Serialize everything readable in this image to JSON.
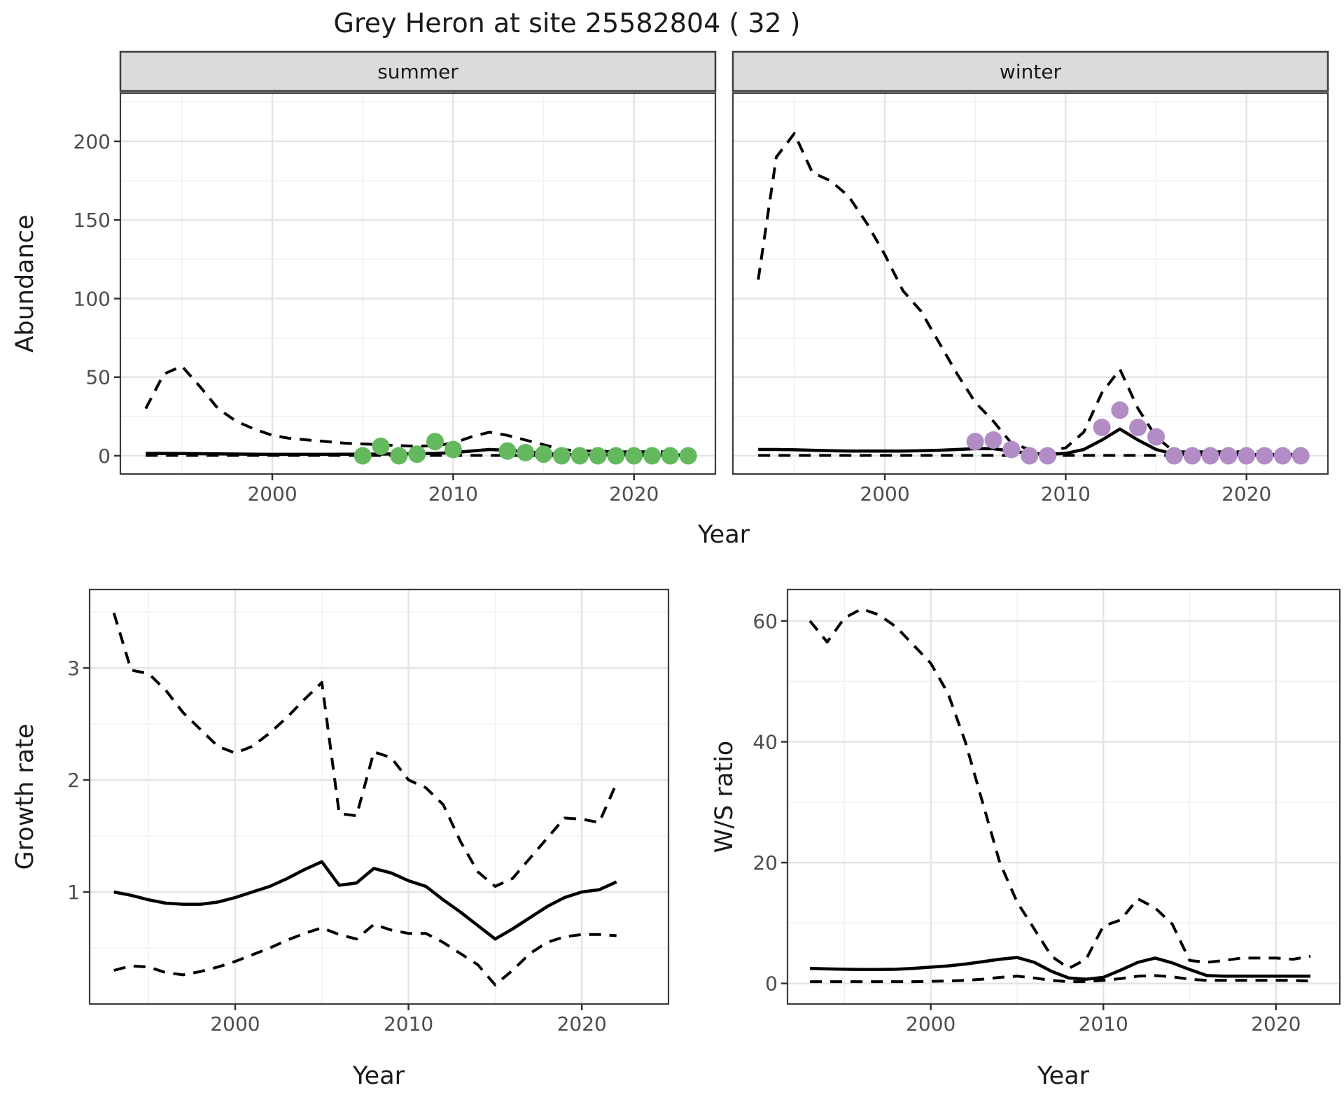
{
  "title": "Grey Heron at site 25582804 ( 32 )",
  "colors": {
    "summer_point": "#64B95F",
    "winter_point": "#B28CC4",
    "line": "#000000",
    "strip_bg": "#DBDBDB",
    "panel_border": "#3c3c3c",
    "grid_major": "#E4E4E4",
    "grid_minor": "#F2F2F2",
    "tick_text": "#4d4d4d"
  },
  "chart_data": [
    {
      "id": "abundance-summer",
      "type": "line",
      "facet_label": "summer",
      "xlabel": "Year",
      "ylabel": "Abundance",
      "xlim": [
        1991.6,
        2024.5
      ],
      "ylim": [
        -11.6,
        230.7
      ],
      "x_ticks": [
        2000,
        2010,
        2020
      ],
      "x_minor": [
        1995,
        2005,
        2015
      ],
      "y_ticks": [
        0,
        50,
        100,
        150,
        200
      ],
      "y_minor": [
        25,
        75,
        125,
        175,
        225
      ],
      "x": [
        1993,
        1994,
        1995,
        1996,
        1997,
        1998,
        1999,
        2000,
        2001,
        2002,
        2003,
        2004,
        2005,
        2006,
        2007,
        2008,
        2009,
        2010,
        2011,
        2012,
        2013,
        2014,
        2015,
        2016,
        2017,
        2018,
        2019,
        2020,
        2021,
        2022,
        2023
      ],
      "series": [
        {
          "name": "upper-ci",
          "style": "dashed",
          "values": [
            30,
            52,
            57,
            44,
            30,
            22,
            17,
            13,
            11,
            10,
            9,
            8,
            7.5,
            7,
            6.5,
            6,
            6.5,
            8,
            12,
            15,
            13,
            10,
            7,
            4,
            3,
            3,
            2.5,
            2.5,
            2.5,
            2.5,
            2.5
          ]
        },
        {
          "name": "fit",
          "style": "solid",
          "values": [
            1.5,
            1.5,
            1.4,
            1.3,
            1.2,
            1.1,
            1.0,
            0.9,
            0.9,
            0.9,
            0.9,
            1.0,
            1.0,
            1.1,
            1.2,
            1.3,
            1.5,
            2.0,
            3.0,
            4.0,
            3.5,
            2.5,
            1.5,
            0.8,
            0.6,
            0.5,
            0.5,
            0.5,
            0.5,
            0.5,
            0.5
          ]
        },
        {
          "name": "lower-ci",
          "style": "dashed",
          "values": [
            0.2,
            0.2,
            0.2,
            0.2,
            0.2,
            0.2,
            0.2,
            0.2,
            0.2,
            0.2,
            0.2,
            0.2,
            0.2,
            0.2,
            0.2,
            0.2,
            0.2,
            0.2,
            0.2,
            0.2,
            0.2,
            0.2,
            0.2,
            0.2,
            0.2,
            0.2,
            0.2,
            0.2,
            0.2,
            0.2,
            0.2
          ]
        }
      ],
      "points": {
        "name": "observed-summer",
        "color": "#64B95F",
        "data": [
          [
            2005,
            0
          ],
          [
            2006,
            6
          ],
          [
            2007,
            0
          ],
          [
            2008,
            1
          ],
          [
            2009,
            9
          ],
          [
            2010,
            4
          ],
          [
            2013,
            3
          ],
          [
            2014,
            2
          ],
          [
            2015,
            1
          ],
          [
            2016,
            0
          ],
          [
            2017,
            0
          ],
          [
            2018,
            0
          ],
          [
            2019,
            0
          ],
          [
            2020,
            0
          ],
          [
            2021,
            0
          ],
          [
            2022,
            0
          ],
          [
            2023,
            0
          ]
        ]
      }
    },
    {
      "id": "abundance-winter",
      "type": "line",
      "facet_label": "winter",
      "xlabel": "Year",
      "ylabel": "Abundance",
      "xlim": [
        1991.6,
        2024.5
      ],
      "ylim": [
        -11.6,
        230.7
      ],
      "x_ticks": [
        2000,
        2010,
        2020
      ],
      "x_minor": [
        1995,
        2005,
        2015
      ],
      "y_ticks": [
        0,
        50,
        100,
        150,
        200
      ],
      "y_minor": [
        25,
        75,
        125,
        175,
        225
      ],
      "x": [
        1993,
        1994,
        1995,
        1996,
        1997,
        1998,
        1999,
        2000,
        2001,
        2002,
        2003,
        2004,
        2005,
        2006,
        2007,
        2008,
        2009,
        2010,
        2011,
        2012,
        2013,
        2014,
        2015,
        2016,
        2017,
        2018,
        2019,
        2020,
        2021,
        2022,
        2023
      ],
      "series": [
        {
          "name": "upper-ci",
          "style": "dashed",
          "values": [
            112,
            190,
            205,
            180,
            175,
            165,
            148,
            128,
            105,
            92,
            72,
            52,
            34,
            22,
            8,
            4,
            3,
            5,
            15,
            40,
            55,
            30,
            12,
            2.5,
            2.5,
            2.5,
            2.5,
            2.5,
            2.5,
            2.5,
            3.5
          ]
        },
        {
          "name": "fit",
          "style": "solid",
          "values": [
            4,
            4,
            3.8,
            3.5,
            3.2,
            3,
            3,
            3,
            3,
            3.2,
            3.5,
            4,
            4.5,
            4.5,
            3,
            1.5,
            1,
            1.5,
            4,
            10,
            17,
            10,
            4,
            1,
            0.8,
            0.8,
            0.8,
            0.8,
            0.8,
            0.8,
            0.8
          ]
        },
        {
          "name": "lower-ci",
          "style": "dashed",
          "values": [
            0.2,
            0.2,
            0.2,
            0.2,
            0.2,
            0.2,
            0.2,
            0.2,
            0.2,
            0.2,
            0.2,
            0.2,
            0.2,
            0.2,
            0.2,
            0.2,
            0.2,
            0.2,
            0.2,
            0.2,
            0.2,
            0.2,
            0.2,
            0.2,
            0.2,
            0.2,
            0.2,
            0.2,
            0.2,
            0.2,
            0.2
          ]
        }
      ],
      "points": {
        "name": "observed-winter",
        "color": "#B28CC4",
        "data": [
          [
            2005,
            9
          ],
          [
            2006,
            10
          ],
          [
            2007,
            4
          ],
          [
            2008,
            0
          ],
          [
            2009,
            0
          ],
          [
            2012,
            18
          ],
          [
            2013,
            29
          ],
          [
            2014,
            18
          ],
          [
            2015,
            12
          ],
          [
            2016,
            0
          ],
          [
            2017,
            0
          ],
          [
            2018,
            0
          ],
          [
            2019,
            0
          ],
          [
            2020,
            0
          ],
          [
            2021,
            0
          ],
          [
            2022,
            0
          ],
          [
            2023,
            0
          ]
        ]
      }
    },
    {
      "id": "growth-rate",
      "type": "line",
      "facet_label": null,
      "xlabel": "Year",
      "ylabel": "Growth rate",
      "xlim": [
        1991.6,
        2025.0
      ],
      "ylim": [
        0,
        3.7
      ],
      "x_ticks": [
        2000,
        2010,
        2020
      ],
      "x_minor": [
        1995,
        2005,
        2015
      ],
      "y_ticks": [
        1,
        2,
        3
      ],
      "y_minor": [
        0.5,
        1.5,
        2.5,
        3.5
      ],
      "x": [
        1993,
        1994,
        1995,
        1996,
        1997,
        1998,
        1999,
        2000,
        2001,
        2002,
        2003,
        2004,
        2005,
        2006,
        2007,
        2008,
        2009,
        2010,
        2011,
        2012,
        2013,
        2014,
        2015,
        2016,
        2017,
        2018,
        2019,
        2020,
        2021,
        2022
      ],
      "series": [
        {
          "name": "upper-ci",
          "style": "dashed",
          "values": [
            3.49,
            2.98,
            2.95,
            2.8,
            2.6,
            2.45,
            2.3,
            2.24,
            2.3,
            2.42,
            2.56,
            2.72,
            2.87,
            1.7,
            1.68,
            2.25,
            2.2,
            2.0,
            1.93,
            1.78,
            1.45,
            1.18,
            1.05,
            1.12,
            1.3,
            1.48,
            1.66,
            1.65,
            1.62,
            1.97
          ]
        },
        {
          "name": "fit",
          "style": "solid",
          "values": [
            1.0,
            0.97,
            0.93,
            0.9,
            0.89,
            0.89,
            0.91,
            0.95,
            1.0,
            1.05,
            1.12,
            1.2,
            1.27,
            1.06,
            1.08,
            1.21,
            1.17,
            1.1,
            1.05,
            0.93,
            0.82,
            0.7,
            0.58,
            0.67,
            0.77,
            0.87,
            0.95,
            1.0,
            1.02,
            1.09
          ]
        },
        {
          "name": "lower-ci",
          "style": "dashed",
          "values": [
            0.3,
            0.34,
            0.33,
            0.28,
            0.26,
            0.29,
            0.33,
            0.38,
            0.44,
            0.5,
            0.57,
            0.63,
            0.68,
            0.62,
            0.58,
            0.71,
            0.66,
            0.63,
            0.63,
            0.55,
            0.45,
            0.35,
            0.17,
            0.3,
            0.45,
            0.55,
            0.6,
            0.62,
            0.62,
            0.61
          ]
        }
      ],
      "points": null
    },
    {
      "id": "ws-ratio",
      "type": "line",
      "facet_label": null,
      "xlabel": "Year",
      "ylabel": "W/S ratio",
      "xlim": [
        1991.7,
        2023.7
      ],
      "ylim": [
        -3.4,
        65.2
      ],
      "x_ticks": [
        2000,
        2010,
        2020
      ],
      "x_minor": [
        1995,
        2005,
        2015
      ],
      "y_ticks": [
        0,
        20,
        40,
        60
      ],
      "y_minor": [
        10,
        30,
        50
      ],
      "x": [
        1993,
        1994,
        1995,
        1996,
        1997,
        1998,
        1999,
        2000,
        2001,
        2002,
        2003,
        2004,
        2005,
        2006,
        2007,
        2008,
        2009,
        2010,
        2011,
        2012,
        2013,
        2014,
        2015,
        2016,
        2017,
        2018,
        2019,
        2020,
        2021,
        2022
      ],
      "series": [
        {
          "name": "upper-ci",
          "style": "dashed",
          "values": [
            60,
            56.5,
            60.5,
            62,
            61,
            59,
            56,
            53,
            48,
            40,
            30,
            20,
            13.5,
            9,
            4.5,
            2.5,
            4,
            9.5,
            10.5,
            14,
            12.5,
            9.8,
            3.8,
            3.5,
            3.8,
            4.2,
            4.2,
            4.2,
            4,
            4.5
          ]
        },
        {
          "name": "fit",
          "style": "solid",
          "values": [
            2.5,
            2.4,
            2.35,
            2.3,
            2.3,
            2.35,
            2.5,
            2.7,
            2.9,
            3.2,
            3.6,
            4.0,
            4.3,
            3.5,
            2.0,
            0.9,
            0.7,
            1.0,
            2.2,
            3.5,
            4.2,
            3.4,
            2.3,
            1.3,
            1.2,
            1.2,
            1.2,
            1.2,
            1.2,
            1.2
          ]
        },
        {
          "name": "lower-ci",
          "style": "dashed",
          "values": [
            0.3,
            0.3,
            0.3,
            0.3,
            0.3,
            0.3,
            0.3,
            0.35,
            0.4,
            0.5,
            0.7,
            1.0,
            1.2,
            0.9,
            0.5,
            0.3,
            0.3,
            0.5,
            0.8,
            1.2,
            1.3,
            1.1,
            0.7,
            0.5,
            0.5,
            0.5,
            0.5,
            0.5,
            0.5,
            0.4
          ]
        }
      ],
      "points": null
    }
  ]
}
